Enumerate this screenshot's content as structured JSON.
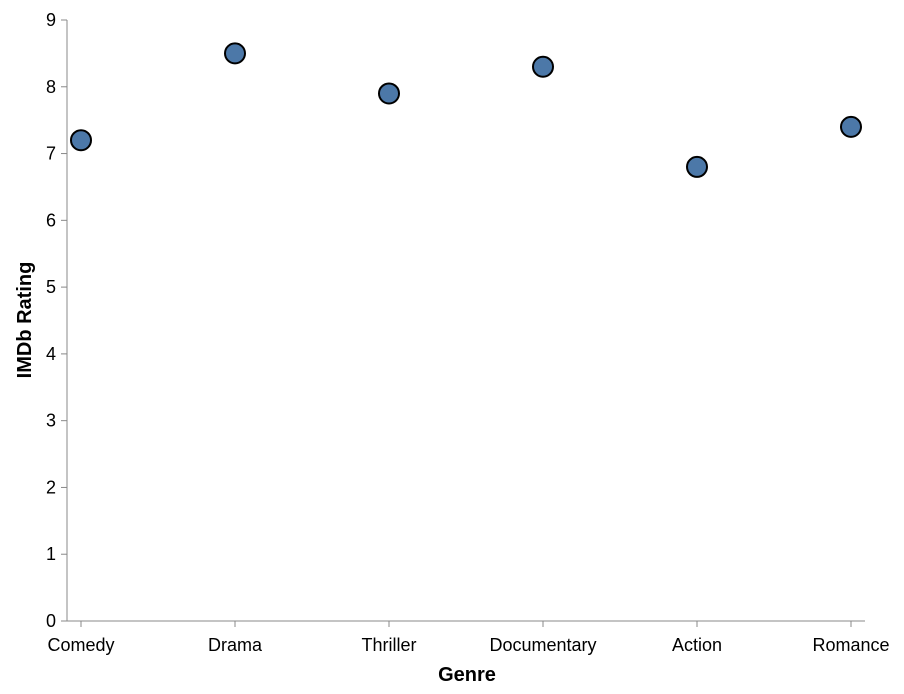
{
  "chart_data": {
    "type": "scatter",
    "categories": [
      "Comedy",
      "Drama",
      "Thriller",
      "Documentary",
      "Action",
      "Romance"
    ],
    "series": [
      {
        "values": [
          7.2,
          8.5,
          7.9,
          8.3,
          6.8,
          7.4
        ]
      }
    ],
    "xlabel": "Genre",
    "ylabel": "IMDb Rating",
    "ylim": [
      0,
      9
    ],
    "yticks": [
      0,
      1,
      2,
      3,
      4,
      5,
      6,
      7,
      8,
      9
    ],
    "grid": false,
    "colors": {
      "point_fill": "#4c78a8",
      "point_stroke": "#000000",
      "axis": "#888888"
    }
  }
}
